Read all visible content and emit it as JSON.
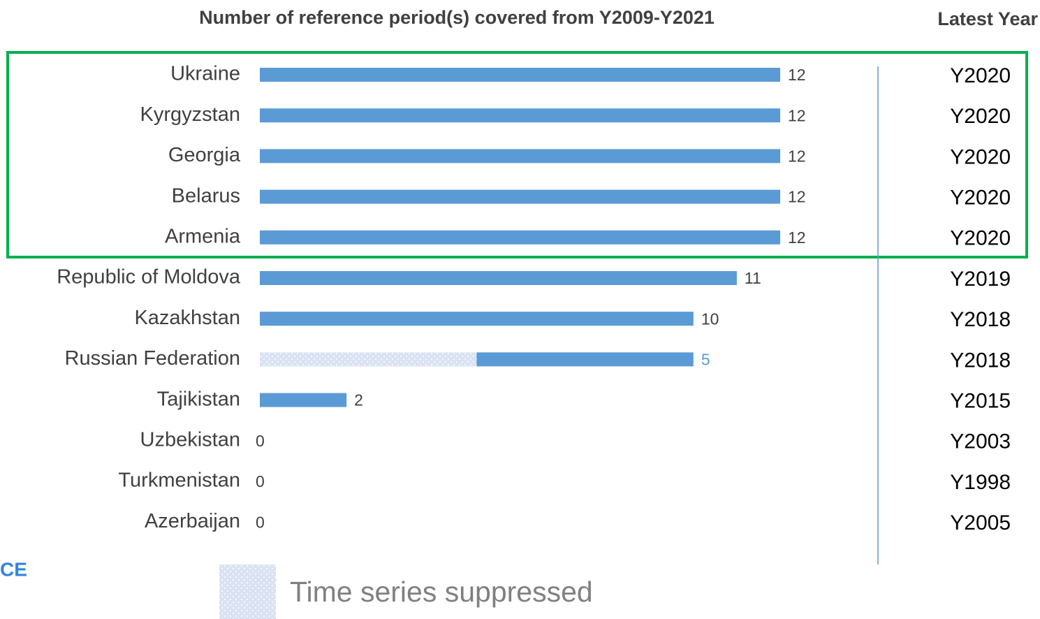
{
  "chart_data": {
    "type": "stacked_barh",
    "title": "Number of reference period(s) covered from Y2009-Y2021",
    "side_title": "Latest Year",
    "categories": [
      "Ukraine",
      "Kyrgyzstan",
      "Georgia",
      "Belarus",
      "Armenia",
      "Republic of Moldova",
      "Kazakhstan",
      "Russian Federation",
      "Tajikistan",
      "Uzbekistan",
      "Turkmenistan",
      "Azerbaijan"
    ],
    "series": [
      {
        "name": "Time series suppressed",
        "color": "#dae3f3",
        "dot_color": "#ffffff",
        "values": [
          null,
          null,
          null,
          null,
          null,
          null,
          null,
          5,
          null,
          null,
          null,
          null
        ]
      },
      {
        "color": "#5b9bd5",
        "values": [
          12,
          12,
          12,
          12,
          12,
          11,
          10,
          5,
          2,
          0,
          0,
          0
        ]
      }
    ],
    "latest_year": [
      "Y2020",
      "Y2020",
      "Y2020",
      "Y2020",
      "Y2020",
      "Y2019",
      "Y2018",
      "Y2018",
      "Y2015",
      "Y2003",
      "Y1998",
      "Y2005"
    ],
    "xlim": [
      0,
      12
    ],
    "value_label_color": "#404040",
    "suppressed_label_color": "#5b9bd5",
    "logo_text": "CE"
  }
}
